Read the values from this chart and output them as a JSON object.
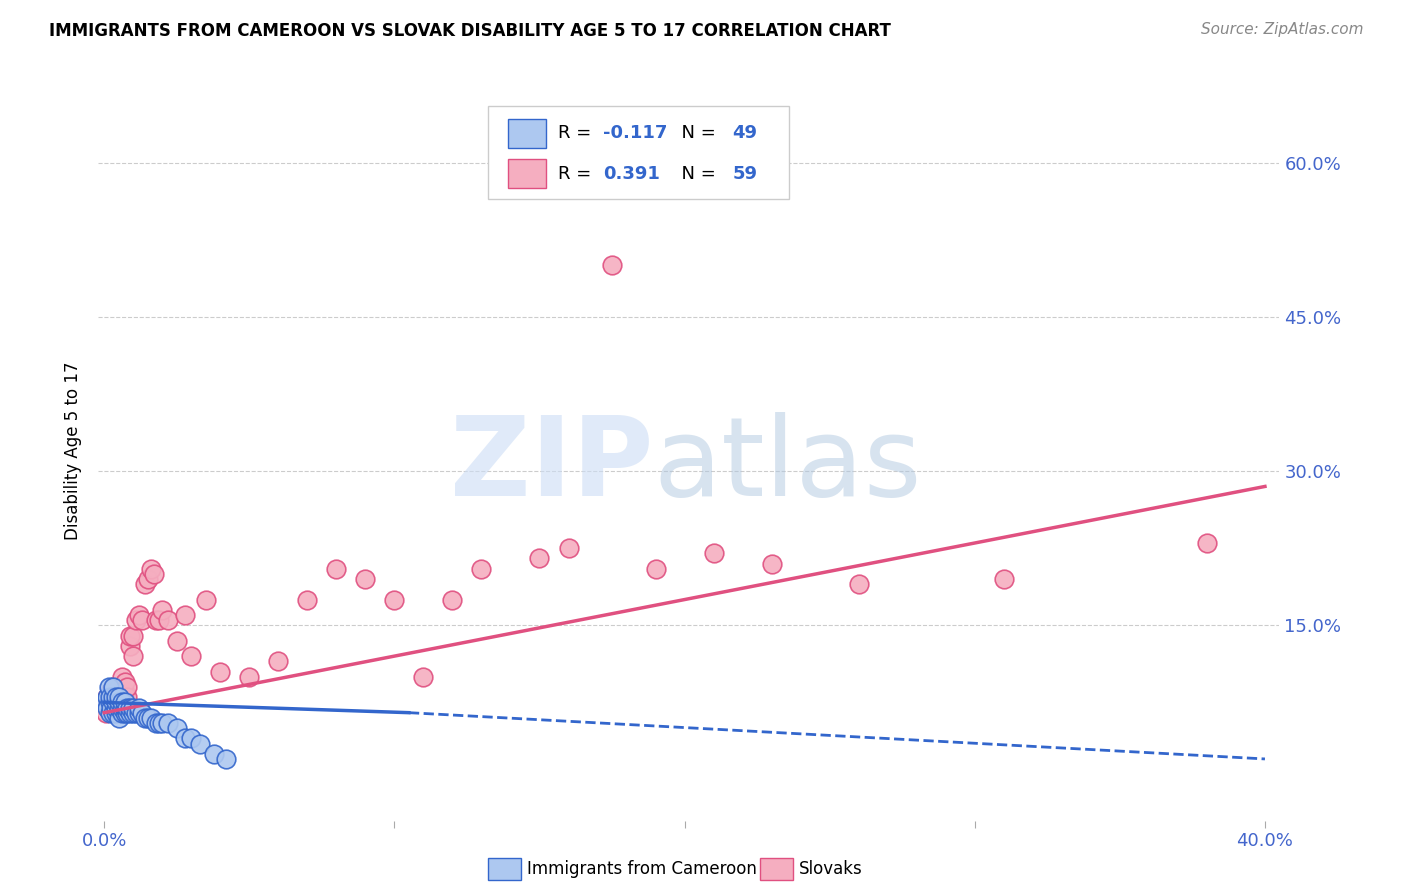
{
  "title": "IMMIGRANTS FROM CAMEROON VS SLOVAK DISABILITY AGE 5 TO 17 CORRELATION CHART",
  "source": "Source: ZipAtlas.com",
  "ylabel": "Disability Age 5 to 17",
  "xlim": [
    -0.002,
    0.405
  ],
  "ylim": [
    -0.04,
    0.68
  ],
  "xtick_vals": [
    0.0,
    0.1,
    0.2,
    0.3,
    0.4
  ],
  "xticklabels": [
    "0.0%",
    "",
    "",
    "",
    "40.0%"
  ],
  "ytick_vals": [
    0.15,
    0.3,
    0.45,
    0.6
  ],
  "yticklabels_right": [
    "15.0%",
    "30.0%",
    "45.0%",
    "60.0%"
  ],
  "r_cameroon": -0.117,
  "n_cameroon": 49,
  "r_slovak": 0.391,
  "n_slovak": 59,
  "color_cameroon": "#adc8f0",
  "color_slovak": "#f5aec0",
  "line_color_cameroon": "#3366cc",
  "line_color_slovak": "#e05080",
  "legend_label_cameroon": "Immigrants from Cameroon",
  "legend_label_slovak": "Slovaks",
  "cam_line_x0": 0.0,
  "cam_line_x_solid_end": 0.105,
  "cam_line_x1": 0.4,
  "cam_line_y0": 0.075,
  "cam_line_y_solid_end": 0.065,
  "cam_line_y1": 0.02,
  "slo_line_x0": 0.0,
  "slo_line_x1": 0.4,
  "slo_line_y0": 0.065,
  "slo_line_y1": 0.285,
  "cameroon_x": [
    0.0005,
    0.001,
    0.001,
    0.0015,
    0.002,
    0.002,
    0.002,
    0.0025,
    0.003,
    0.003,
    0.003,
    0.003,
    0.004,
    0.004,
    0.004,
    0.004,
    0.005,
    0.005,
    0.005,
    0.005,
    0.006,
    0.006,
    0.006,
    0.007,
    0.007,
    0.007,
    0.008,
    0.008,
    0.009,
    0.009,
    0.01,
    0.01,
    0.011,
    0.012,
    0.012,
    0.013,
    0.014,
    0.015,
    0.016,
    0.018,
    0.019,
    0.02,
    0.022,
    0.025,
    0.028,
    0.03,
    0.033,
    0.038,
    0.042
  ],
  "cameroon_y": [
    0.075,
    0.08,
    0.07,
    0.09,
    0.065,
    0.075,
    0.08,
    0.07,
    0.065,
    0.075,
    0.08,
    0.09,
    0.065,
    0.07,
    0.075,
    0.08,
    0.06,
    0.07,
    0.075,
    0.08,
    0.065,
    0.07,
    0.075,
    0.065,
    0.07,
    0.075,
    0.065,
    0.07,
    0.065,
    0.07,
    0.065,
    0.07,
    0.065,
    0.065,
    0.07,
    0.065,
    0.06,
    0.06,
    0.06,
    0.055,
    0.055,
    0.055,
    0.055,
    0.05,
    0.04,
    0.04,
    0.035,
    0.025,
    0.02
  ],
  "slovak_x": [
    0.0005,
    0.001,
    0.001,
    0.002,
    0.002,
    0.002,
    0.003,
    0.003,
    0.003,
    0.004,
    0.004,
    0.005,
    0.005,
    0.005,
    0.006,
    0.006,
    0.007,
    0.007,
    0.007,
    0.008,
    0.008,
    0.009,
    0.009,
    0.01,
    0.01,
    0.011,
    0.012,
    0.013,
    0.014,
    0.015,
    0.016,
    0.017,
    0.018,
    0.019,
    0.02,
    0.022,
    0.025,
    0.028,
    0.03,
    0.035,
    0.04,
    0.05,
    0.06,
    0.07,
    0.08,
    0.09,
    0.1,
    0.11,
    0.12,
    0.13,
    0.15,
    0.16,
    0.175,
    0.19,
    0.21,
    0.23,
    0.26,
    0.31,
    0.38
  ],
  "slovak_y": [
    0.065,
    0.075,
    0.08,
    0.07,
    0.08,
    0.085,
    0.07,
    0.08,
    0.09,
    0.075,
    0.085,
    0.075,
    0.08,
    0.09,
    0.08,
    0.1,
    0.075,
    0.085,
    0.095,
    0.08,
    0.09,
    0.13,
    0.14,
    0.12,
    0.14,
    0.155,
    0.16,
    0.155,
    0.19,
    0.195,
    0.205,
    0.2,
    0.155,
    0.155,
    0.165,
    0.155,
    0.135,
    0.16,
    0.12,
    0.175,
    0.105,
    0.1,
    0.115,
    0.175,
    0.205,
    0.195,
    0.175,
    0.1,
    0.175,
    0.205,
    0.215,
    0.225,
    0.5,
    0.205,
    0.22,
    0.21,
    0.19,
    0.195,
    0.23
  ]
}
